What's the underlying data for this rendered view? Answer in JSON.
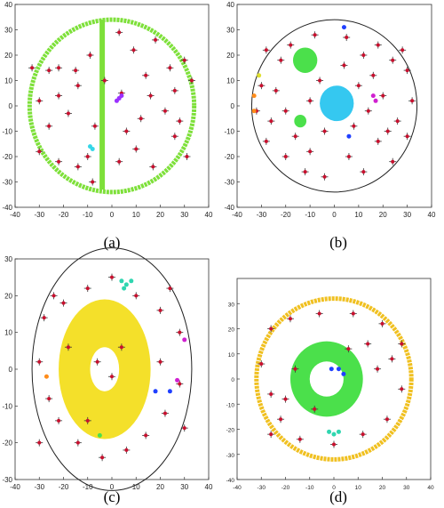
{
  "figure": {
    "captions": [
      "(a)",
      "(b)",
      "(c)",
      "(d)"
    ]
  },
  "chart_data": [
    {
      "type": "scatter",
      "caption": "(a)",
      "xlim": [
        -40,
        40
      ],
      "ylim": [
        -40,
        40
      ],
      "xticks": [
        -40,
        -30,
        -20,
        -10,
        0,
        10,
        20,
        30,
        40
      ],
      "yticks": [
        -40,
        -30,
        -20,
        -10,
        0,
        10,
        20,
        30,
        40
      ],
      "grid": false,
      "series": [
        {
          "kind": "circle",
          "color": "#7ee03a",
          "cx": 0,
          "cy": 0,
          "r": 34
        },
        {
          "kind": "bar",
          "color": "#7ee03a",
          "x": -4,
          "y0": -33,
          "y1": 34
        },
        {
          "kind": "cross",
          "color": "#c8102e",
          "points": [
            [
              -33,
              15
            ],
            [
              -26,
              14
            ],
            [
              -22,
              15
            ],
            [
              -15,
              14
            ],
            [
              -9,
              20
            ],
            [
              3,
              29
            ],
            [
              9,
              22
            ],
            [
              18,
              26
            ],
            [
              24,
              15
            ],
            [
              30,
              18
            ],
            [
              -30,
              2
            ],
            [
              -26,
              -8
            ],
            [
              -18,
              -3
            ],
            [
              -22,
              4
            ],
            [
              -14,
              8
            ],
            [
              -7,
              -8
            ],
            [
              4,
              5
            ],
            [
              12,
              -5
            ],
            [
              16,
              4
            ],
            [
              26,
              6
            ],
            [
              33,
              10
            ],
            [
              -30,
              -18
            ],
            [
              -22,
              -22
            ],
            [
              -8,
              -30
            ],
            [
              3,
              -22
            ],
            [
              10,
              -17
            ],
            [
              17,
              -24
            ],
            [
              26,
              -12
            ],
            [
              31,
              -20
            ],
            [
              -14,
              -24
            ],
            [
              -3,
              10
            ],
            [
              6,
              -10
            ],
            [
              22,
              -2
            ],
            [
              28,
              -6
            ],
            [
              -10,
              -20
            ],
            [
              14,
              12
            ]
          ]
        },
        {
          "kind": "blob",
          "color": "#9b30ff",
          "points": [
            [
              2,
              2
            ],
            [
              3,
              3
            ],
            [
              4,
              4
            ]
          ]
        },
        {
          "kind": "blob",
          "color": "#35d6e8",
          "points": [
            [
              -9,
              -16
            ],
            [
              -8,
              -17
            ]
          ]
        }
      ]
    },
    {
      "type": "scatter",
      "caption": "(b)",
      "xlim": [
        -40,
        40
      ],
      "ylim": [
        -40,
        40
      ],
      "xticks": [
        -40,
        -30,
        -20,
        -10,
        0,
        10,
        20,
        30,
        40
      ],
      "yticks": [
        -40,
        -30,
        -20,
        -10,
        0,
        10,
        20,
        30,
        40
      ],
      "grid": false,
      "series": [
        {
          "kind": "outline",
          "color": "#222222",
          "cx": 0,
          "cy": 0,
          "r": 34
        },
        {
          "kind": "disc",
          "color": "#35c8f0",
          "cx": 1,
          "cy": 1,
          "r": 7
        },
        {
          "kind": "disc",
          "color": "#4be04b",
          "cx": -12,
          "cy": 18,
          "r": 5
        },
        {
          "kind": "disc",
          "color": "#4be04b",
          "cx": -14,
          "cy": -6,
          "r": 2.5
        },
        {
          "kind": "cross",
          "color": "#c8102e",
          "points": [
            [
              -28,
              22
            ],
            [
              -22,
              18
            ],
            [
              -18,
              24
            ],
            [
              -8,
              28
            ],
            [
              5,
              27
            ],
            [
              12,
              20
            ],
            [
              18,
              24
            ],
            [
              24,
              18
            ],
            [
              30,
              14
            ],
            [
              -30,
              8
            ],
            [
              -24,
              6
            ],
            [
              -20,
              -2
            ],
            [
              -10,
              2
            ],
            [
              -6,
              10
            ],
            [
              10,
              8
            ],
            [
              14,
              -2
            ],
            [
              20,
              4
            ],
            [
              26,
              -6
            ],
            [
              32,
              2
            ],
            [
              -28,
              -14
            ],
            [
              -20,
              -20
            ],
            [
              -12,
              -26
            ],
            [
              -4,
              -28
            ],
            [
              6,
              -20
            ],
            [
              12,
              -26
            ],
            [
              18,
              -14
            ],
            [
              24,
              -22
            ],
            [
              30,
              -12
            ],
            [
              -16,
              -12
            ],
            [
              -4,
              -10
            ],
            [
              8,
              -8
            ],
            [
              16,
              12
            ],
            [
              -26,
              -6
            ],
            [
              22,
              -10
            ],
            [
              -10,
              -18
            ],
            [
              4,
              16
            ],
            [
              28,
              22
            ],
            [
              -32,
              -2
            ]
          ]
        },
        {
          "kind": "blob",
          "color": "#ff8c1a",
          "points": [
            [
              -33,
              4
            ],
            [
              -33,
              -2
            ]
          ]
        },
        {
          "kind": "blob",
          "color": "#e0e030",
          "points": [
            [
              -31,
              12
            ]
          ]
        },
        {
          "kind": "blob",
          "color": "#d020d0",
          "points": [
            [
              16,
              4
            ],
            [
              17,
              2
            ]
          ]
        },
        {
          "kind": "blob",
          "color": "#2040ff",
          "points": [
            [
              4,
              31
            ],
            [
              6,
              -12
            ]
          ]
        }
      ]
    },
    {
      "type": "scatter",
      "caption": "(c)",
      "xlim": [
        -40,
        40
      ],
      "ylim": [
        -30,
        30
      ],
      "xticks": [
        -40,
        -30,
        -20,
        -10,
        0,
        10,
        20,
        30,
        40
      ],
      "yticks": [
        -30,
        -20,
        -10,
        0,
        10,
        20,
        30
      ],
      "grid": false,
      "series": [
        {
          "kind": "outline",
          "color": "#222222",
          "cx": 0,
          "cy": 0,
          "r": 33
        },
        {
          "kind": "ring",
          "color": "#f4e02a",
          "cx": -3,
          "cy": 0,
          "r_outer": 19,
          "r_inner": 6
        },
        {
          "kind": "cross",
          "color": "#c8102e",
          "points": [
            [
              -28,
              14
            ],
            [
              -20,
              18
            ],
            [
              -10,
              22
            ],
            [
              0,
              25
            ],
            [
              10,
              20
            ],
            [
              20,
              16
            ],
            [
              28,
              10
            ],
            [
              -30,
              2
            ],
            [
              -26,
              -8
            ],
            [
              -22,
              -14
            ],
            [
              -14,
              -20
            ],
            [
              -4,
              -24
            ],
            [
              6,
              -22
            ],
            [
              14,
              -18
            ],
            [
              22,
              -12
            ],
            [
              28,
              -4
            ],
            [
              -18,
              6
            ],
            [
              20,
              2
            ],
            [
              -6,
              2
            ],
            [
              0,
              -2
            ],
            [
              4,
              6
            ],
            [
              -24,
              20
            ],
            [
              24,
              22
            ],
            [
              -30,
              -20
            ],
            [
              30,
              -16
            ],
            [
              -10,
              -14
            ]
          ]
        },
        {
          "kind": "blob",
          "color": "#30d6b0",
          "points": [
            [
              4,
              24
            ],
            [
              6,
              23
            ],
            [
              8,
              24
            ],
            [
              5,
              22
            ]
          ]
        },
        {
          "kind": "blob",
          "color": "#ff8c1a",
          "points": [
            [
              -27,
              -2
            ]
          ]
        },
        {
          "kind": "blob",
          "color": "#2040ff",
          "points": [
            [
              18,
              -6
            ],
            [
              24,
              -6
            ]
          ]
        },
        {
          "kind": "blob",
          "color": "#d020d0",
          "points": [
            [
              27,
              -3
            ],
            [
              30,
              8
            ]
          ]
        },
        {
          "kind": "blob",
          "color": "#4be04b",
          "points": [
            [
              -5,
              -18
            ]
          ]
        }
      ]
    },
    {
      "type": "scatter",
      "caption": "(d)",
      "xlim": [
        -40,
        40
      ],
      "ylim": [
        -40,
        40
      ],
      "xticks": [
        -40,
        -30,
        -20,
        -10,
        0,
        10,
        20,
        30,
        40
      ],
      "yticks": [
        -40,
        -30,
        -20,
        -10,
        0,
        10,
        20,
        30
      ],
      "grid": false,
      "series": [
        {
          "kind": "circle",
          "color": "#f0c020",
          "cx": 0,
          "cy": 0,
          "r": 32
        },
        {
          "kind": "ring",
          "color": "#4be04b",
          "cx": -3,
          "cy": 0,
          "r_outer": 15,
          "r_inner": 7
        },
        {
          "kind": "cross",
          "color": "#c8102e",
          "points": [
            [
              -26,
              20
            ],
            [
              -18,
              24
            ],
            [
              -6,
              26
            ],
            [
              8,
              26
            ],
            [
              20,
              22
            ],
            [
              28,
              14
            ],
            [
              -30,
              6
            ],
            [
              -26,
              -6
            ],
            [
              -22,
              -16
            ],
            [
              -14,
              -24
            ],
            [
              0,
              -26
            ],
            [
              12,
              -22
            ],
            [
              22,
              -16
            ],
            [
              28,
              -4
            ],
            [
              -16,
              4
            ],
            [
              18,
              4
            ],
            [
              -8,
              -12
            ],
            [
              6,
              12
            ],
            [
              24,
              8
            ],
            [
              -26,
              -22
            ],
            [
              14,
              14
            ],
            [
              -20,
              -8
            ]
          ]
        },
        {
          "kind": "blob",
          "color": "#2040ff",
          "points": [
            [
              -1,
              4
            ],
            [
              2,
              4
            ],
            [
              4,
              2
            ]
          ]
        },
        {
          "kind": "blob",
          "color": "#30d6b0",
          "points": [
            [
              -2,
              -21
            ],
            [
              0,
              -22
            ],
            [
              2,
              -21
            ]
          ]
        }
      ]
    }
  ]
}
